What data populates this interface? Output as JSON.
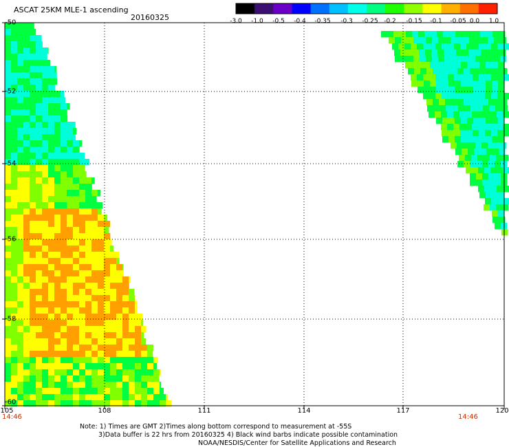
{
  "header": {
    "title": "ASCAT 25KM MLE-1 ascending",
    "date": "20160325"
  },
  "colorbar": {
    "labels": [
      "-3.0",
      "-1.0",
      "-0.5",
      "-0.4",
      "-0.35",
      "-0.3",
      "-0.25",
      "-0.2",
      "-0.15",
      "-0.1",
      "-0.05",
      "0.0",
      "1.0"
    ],
    "colors": [
      "#000000",
      "#3c1070",
      "#6a00c8",
      "#0000ff",
      "#0070ff",
      "#00c0ff",
      "#00ffe8",
      "#00ff80",
      "#20ff00",
      "#90ff00",
      "#ffff00",
      "#ffb000",
      "#ff7000",
      "#ff2000"
    ]
  },
  "map": {
    "lat_ticks": [
      "-50",
      "-52",
      "-54",
      "-56",
      "-58",
      "-60"
    ],
    "lon_ticks": [
      "105",
      "108",
      "111",
      "114",
      "117",
      "120"
    ],
    "lon_range": [
      105,
      120
    ],
    "lat_range": [
      -50,
      -60
    ],
    "times": [
      "14:46",
      "14:46"
    ],
    "palette": {
      "cyan": "#00ffd8",
      "green": "#00ff40",
      "lime": "#80ff00",
      "yellow": "#ffff00",
      "orange": "#ffa000"
    }
  },
  "notes": [
    "Note: 1) Times are GMT 2)Times along bottom correspond to measurement at -55S",
    "3)Data buffer is 22 hrs from 20160325 4) Black wind barbs indicate possible contamination",
    "NOAA/NESDIS/Center for Satellite Applications and Research"
  ]
}
